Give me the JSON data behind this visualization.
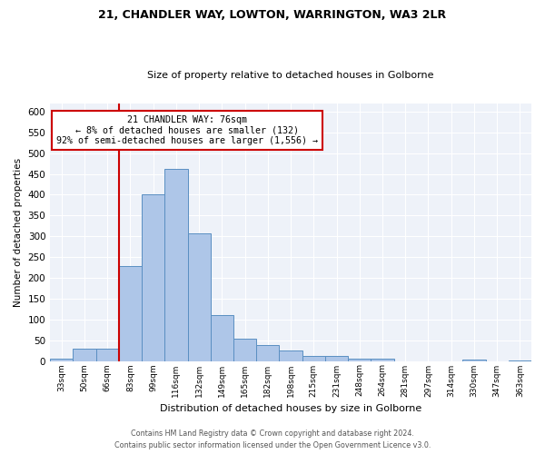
{
  "title_line1": "21, CHANDLER WAY, LOWTON, WARRINGTON, WA3 2LR",
  "title_line2": "Size of property relative to detached houses in Golborne",
  "xlabel": "Distribution of detached houses by size in Golborne",
  "ylabel": "Number of detached properties",
  "categories": [
    "33sqm",
    "50sqm",
    "66sqm",
    "83sqm",
    "99sqm",
    "116sqm",
    "132sqm",
    "149sqm",
    "165sqm",
    "182sqm",
    "198sqm",
    "215sqm",
    "231sqm",
    "248sqm",
    "264sqm",
    "281sqm",
    "297sqm",
    "314sqm",
    "330sqm",
    "347sqm",
    "363sqm"
  ],
  "values": [
    5,
    30,
    30,
    228,
    401,
    463,
    307,
    110,
    53,
    39,
    26,
    13,
    11,
    5,
    5,
    0,
    0,
    0,
    4,
    0,
    2
  ],
  "bar_color": "#aec6e8",
  "bar_edge_color": "#5a8fc2",
  "annotation_line1": "21 CHANDLER WAY: 76sqm",
  "annotation_line2": "← 8% of detached houses are smaller (132)",
  "annotation_line3": "92% of semi-detached houses are larger (1,556) →",
  "annotation_box_color": "#ffffff",
  "annotation_box_edge": "#cc0000",
  "redline_color": "#cc0000",
  "ylim": [
    0,
    620
  ],
  "yticks": [
    0,
    50,
    100,
    150,
    200,
    250,
    300,
    350,
    400,
    450,
    500,
    550,
    600
  ],
  "footer_line1": "Contains HM Land Registry data © Crown copyright and database right 2024.",
  "footer_line2": "Contains public sector information licensed under the Open Government Licence v3.0.",
  "bg_color": "#eef2f9",
  "bar_width": 1.0
}
